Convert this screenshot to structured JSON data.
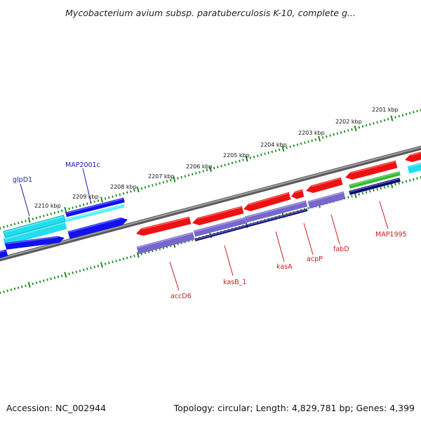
{
  "title": "Mycobacterium avium subsp. paratuberculosis K-10, complete g...",
  "footer": {
    "accession": "Accession: NC_002944",
    "stats": "Topology: circular; Length: 4,829,781 bp; Genes: 4,399"
  },
  "ruler": {
    "unit": "kbp",
    "labels": [
      "2201 kbp",
      "2202 kbp",
      "2203 kbp",
      "2204 kbp",
      "2205 kbp",
      "2206 kbp",
      "2207 kbp",
      "2208 kbp",
      "2209 kbp",
      "2210 kbp"
    ]
  },
  "genes": [
    {
      "name": "glpD1",
      "color": "#1a1aa6"
    },
    {
      "name": "MAP2001c",
      "color": "#1a1aa6"
    },
    {
      "name": "accD6",
      "color": "#cc1a1a"
    },
    {
      "name": "kasB_1",
      "color": "#cc1a1a"
    },
    {
      "name": "kasA",
      "color": "#cc1a1a"
    },
    {
      "name": "acpP",
      "color": "#cc1a1a"
    },
    {
      "name": "fabD",
      "color": "#cc1a1a"
    },
    {
      "name": "MAP1995",
      "color": "#cc1a1a"
    }
  ],
  "colors": {
    "forward_gene": "#ee1111",
    "reverse_gene": "#1111ee",
    "forward_cds": "#7766cc",
    "reverse_cds": "#22ddee",
    "navy_cds": "#0a0a78",
    "green_cds": "#33bb33",
    "backbone": "#888888",
    "ruler_ticks": "#1e8a1e",
    "forward_label": "#cc1a1a",
    "reverse_label": "#1a1aa6"
  }
}
